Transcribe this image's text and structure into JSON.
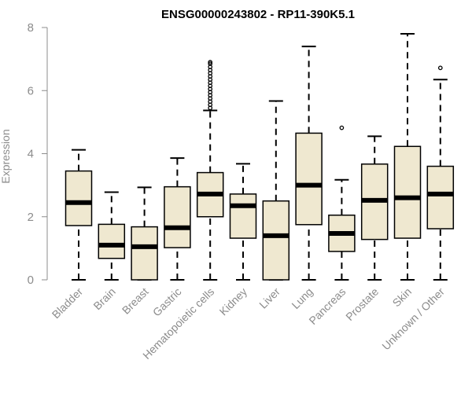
{
  "chart_data": {
    "type": "boxplot",
    "title": "ENSG00000243802 - RP11-390K5.1",
    "xlabel": "",
    "ylabel": "Expression",
    "ylim": [
      0,
      8
    ],
    "yticks": [
      0,
      2,
      4,
      6,
      8
    ],
    "grid": false,
    "box_fill": "#efe8d0",
    "box_stroke": "#000000",
    "axis_color": "#8c8c8c",
    "categories": [
      "Bladder",
      "Brain",
      "Breast",
      "Gastric",
      "Hematopoietic cells",
      "Kidney",
      "Liver",
      "Lung",
      "Pancreas",
      "Prostate",
      "Skin",
      "Unknown / Other"
    ],
    "boxes": [
      {
        "name": "Bladder",
        "min": 0,
        "q1": 1.72,
        "median": 2.45,
        "q3": 3.45,
        "max": 4.12,
        "outliers": []
      },
      {
        "name": "Brain",
        "min": 0,
        "q1": 0.68,
        "median": 1.1,
        "q3": 1.76,
        "max": 2.78,
        "outliers": []
      },
      {
        "name": "Breast",
        "min": 0,
        "q1": 0,
        "median": 1.05,
        "q3": 1.68,
        "max": 2.93,
        "outliers": []
      },
      {
        "name": "Gastric",
        "min": 0,
        "q1": 1.02,
        "median": 1.65,
        "q3": 2.95,
        "max": 3.86,
        "outliers": []
      },
      {
        "name": "Hematopoietic cells",
        "min": 0,
        "q1": 2.0,
        "median": 2.72,
        "q3": 3.4,
        "max": 5.37,
        "outliers": [
          5.45,
          5.55,
          5.65,
          5.75,
          5.85,
          5.95,
          6.05,
          6.15,
          6.25,
          6.35,
          6.45,
          6.55,
          6.65,
          6.75,
          6.85,
          6.9
        ]
      },
      {
        "name": "Kidney",
        "min": 0,
        "q1": 1.32,
        "median": 2.35,
        "q3": 2.72,
        "max": 3.68,
        "outliers": []
      },
      {
        "name": "Liver",
        "min": 0,
        "q1": 0,
        "median": 1.4,
        "q3": 2.5,
        "max": 5.67,
        "outliers": []
      },
      {
        "name": "Lung",
        "min": 0,
        "q1": 1.75,
        "median": 3.0,
        "q3": 4.65,
        "max": 7.4,
        "outliers": []
      },
      {
        "name": "Pancreas",
        "min": 0,
        "q1": 0.9,
        "median": 1.47,
        "q3": 2.05,
        "max": 3.17,
        "outliers": [
          4.82
        ]
      },
      {
        "name": "Prostate",
        "min": 0,
        "q1": 1.28,
        "median": 2.52,
        "q3": 3.67,
        "max": 4.55,
        "outliers": []
      },
      {
        "name": "Skin",
        "min": 0,
        "q1": 1.32,
        "median": 2.6,
        "q3": 4.23,
        "max": 7.8,
        "outliers": []
      },
      {
        "name": "Unknown / Other",
        "min": 0,
        "q1": 1.62,
        "median": 2.72,
        "q3": 3.6,
        "max": 6.35,
        "outliers": [
          6.72
        ]
      }
    ]
  }
}
